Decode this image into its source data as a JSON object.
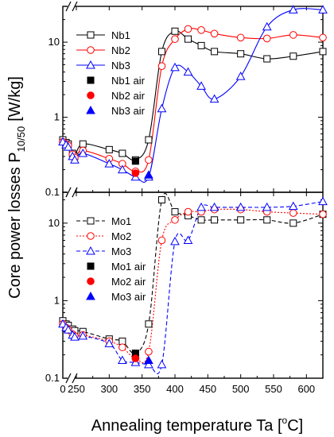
{
  "chart_data": [
    {
      "type": "line",
      "panel": "top",
      "yscale": "log",
      "ylim": [
        0.1,
        30
      ],
      "xlim": [
        0,
        625
      ],
      "y_tick_labels": [
        {
          "value": 0.1,
          "label": "0.1"
        },
        {
          "value": 1,
          "label": "1"
        },
        {
          "value": 10,
          "label": "10"
        }
      ],
      "series": [
        {
          "name": "Nb1",
          "color": "#000000",
          "marker": "open-square",
          "line": "solid",
          "x": [
            0,
            20,
            60,
            100,
            140,
            180,
            220,
            260,
            300,
            320,
            340,
            360,
            380,
            400,
            420,
            440,
            460,
            500,
            540,
            580,
            625
          ],
          "y": [
            0.5,
            0.48,
            0.46,
            0.44,
            0.4,
            0.33,
            0.3,
            0.44,
            0.37,
            0.33,
            0.27,
            0.5,
            7.5,
            14,
            11,
            9,
            7.5,
            7,
            6,
            6.5,
            7.5
          ]
        },
        {
          "name": "Nb2",
          "color": "#ff0000",
          "marker": "open-circle",
          "line": "solid",
          "x": [
            0,
            20,
            60,
            100,
            140,
            180,
            220,
            260,
            300,
            320,
            340,
            360,
            380,
            400,
            420,
            440,
            460,
            500,
            540,
            580,
            625
          ],
          "y": [
            0.47,
            0.46,
            0.44,
            0.42,
            0.38,
            0.32,
            0.29,
            0.36,
            0.28,
            0.24,
            0.19,
            0.27,
            4.8,
            11,
            15,
            14.5,
            13,
            11.5,
            11.2,
            12.5,
            11.5
          ]
        },
        {
          "name": "Nb3",
          "color": "#0000ff",
          "marker": "open-triangle",
          "line": "solid",
          "x": [
            0,
            20,
            60,
            100,
            140,
            180,
            220,
            260,
            300,
            320,
            340,
            360,
            380,
            400,
            420,
            440,
            460,
            500,
            540,
            580,
            625
          ],
          "y": [
            0.47,
            0.46,
            0.43,
            0.4,
            0.36,
            0.3,
            0.27,
            0.33,
            0.24,
            0.2,
            0.16,
            0.16,
            1.3,
            4.6,
            4.0,
            2.6,
            1.75,
            3.5,
            16,
            27,
            27
          ]
        },
        {
          "name": "Nb1 air",
          "color": "#000000",
          "marker": "filled-square",
          "line": "none",
          "x": [
            340
          ],
          "y": [
            0.26
          ]
        },
        {
          "name": "Nb2 air",
          "color": "#ff0000",
          "marker": "filled-circle",
          "line": "none",
          "x": [
            340
          ],
          "y": [
            0.18
          ]
        },
        {
          "name": "Nb3 air",
          "color": "#0000ff",
          "marker": "filled-triangle",
          "line": "none",
          "x": [
            360
          ],
          "y": [
            0.17
          ]
        }
      ]
    },
    {
      "type": "line",
      "panel": "bottom",
      "yscale": "log",
      "ylim": [
        0.1,
        25
      ],
      "xlim": [
        0,
        625
      ],
      "y_tick_labels": [
        {
          "value": 0.1,
          "label": "0.1"
        },
        {
          "value": 1,
          "label": "1"
        },
        {
          "value": 10,
          "label": "10"
        }
      ],
      "x_ticks": [
        0,
        250,
        300,
        350,
        400,
        450,
        500,
        550,
        600
      ],
      "series": [
        {
          "name": "Mo1",
          "color": "#000000",
          "marker": "open-square",
          "line": "dashed",
          "x": [
            0,
            20,
            60,
            100,
            140,
            180,
            220,
            260,
            300,
            320,
            340,
            360,
            380,
            400,
            420,
            440,
            460,
            500,
            540,
            580,
            625
          ],
          "y": [
            0.55,
            0.52,
            0.5,
            0.48,
            0.45,
            0.43,
            0.41,
            0.4,
            0.32,
            0.3,
            0.21,
            0.5,
            20,
            14,
            12.5,
            11,
            11,
            11,
            11,
            10,
            13
          ]
        },
        {
          "name": "Mo2",
          "color": "#ff0000",
          "marker": "open-circle",
          "line": "dotted",
          "x": [
            0,
            20,
            60,
            100,
            140,
            180,
            220,
            260,
            300,
            320,
            340,
            360,
            380,
            400,
            420,
            440,
            460,
            500,
            540,
            580,
            625
          ],
          "y": [
            0.5,
            0.48,
            0.45,
            0.42,
            0.4,
            0.37,
            0.35,
            0.36,
            0.3,
            0.25,
            0.18,
            0.22,
            6,
            11,
            14,
            14,
            15,
            15,
            14,
            13.5,
            13
          ]
        },
        {
          "name": "Mo3",
          "color": "#0000ff",
          "marker": "open-triangle",
          "line": "dashed",
          "x": [
            0,
            20,
            60,
            100,
            140,
            180,
            220,
            260,
            300,
            320,
            340,
            360,
            380,
            400,
            420,
            440,
            460,
            500,
            540,
            580,
            625
          ],
          "y": [
            0.5,
            0.48,
            0.45,
            0.42,
            0.39,
            0.36,
            0.34,
            0.35,
            0.28,
            0.17,
            0.16,
            0.15,
            0.15,
            5.8,
            6.0,
            16,
            16,
            16,
            16,
            16.5,
            19
          ]
        },
        {
          "name": "Mo1 air",
          "color": "#000000",
          "marker": "filled-square",
          "line": "none",
          "x": [
            340
          ],
          "y": [
            0.21
          ]
        },
        {
          "name": "Mo2 air",
          "color": "#ff0000",
          "marker": "filled-circle",
          "line": "none",
          "x": [
            340
          ],
          "y": [
            0.18
          ]
        },
        {
          "name": "Mo3 air",
          "color": "#0000ff",
          "marker": "filled-triangle",
          "line": "none",
          "x": [
            360
          ],
          "y": [
            0.17
          ]
        }
      ]
    }
  ],
  "axes": {
    "ylabel": "Core power losses P",
    "ylabel_sub": "10/50",
    "ylabel_unit": "[W/kg]",
    "xlabel": "Annealing temperature Ta [",
    "xlabel_sup": "o",
    "xlabel_unit": "C]",
    "x_tick_labels": [
      {
        "value": 0,
        "label": "0"
      },
      {
        "value": 250,
        "label": "250"
      },
      {
        "value": 300,
        "label": "300"
      },
      {
        "value": 350,
        "label": "350"
      },
      {
        "value": 400,
        "label": "400"
      },
      {
        "value": 450,
        "label": "450"
      },
      {
        "value": 500,
        "label": "500"
      },
      {
        "value": 550,
        "label": "550"
      },
      {
        "value": 600,
        "label": "600"
      }
    ]
  }
}
